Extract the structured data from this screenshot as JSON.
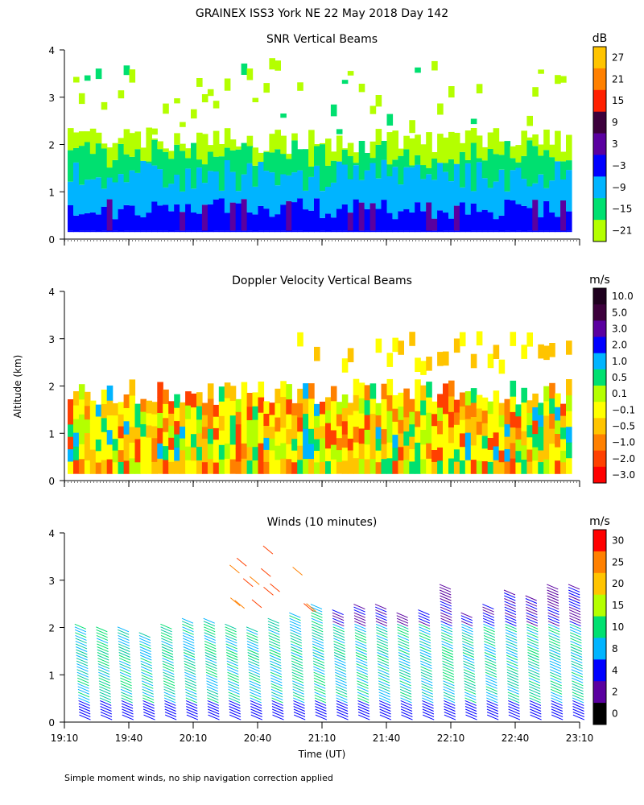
{
  "title": "GRAINEX ISS3 York NE  22 May 2018 Day 142",
  "ylabel": "Altitude (km)",
  "xlabel": "Time (UT)",
  "footnote": "Simple moment winds, no ship navigation correction applied",
  "chart_data": [
    {
      "type": "heatmap",
      "title": "SNR Vertical Beams",
      "colorbar_unit": "dB",
      "colorbar_labels": [
        "27",
        "21",
        "15",
        "9",
        "3",
        "−3",
        "−9",
        "−15",
        "−21"
      ],
      "colorbar_colors": [
        "#ffc400",
        "#ff8000",
        "#ff2000",
        "#3c003c",
        "#5a00a0",
        "#0000ff",
        "#00b4ff",
        "#00e070",
        "#b4ff00"
      ],
      "x_range": [
        19.1667,
        23.1667
      ],
      "ylim": [
        0,
        4
      ],
      "yticks": [
        0,
        1,
        2,
        3,
        4
      ],
      "data_top_km": 2.2,
      "sparse_top_km": 3.9,
      "levels": [
        {
          "top_km": 0.15,
          "value_db": -3
        },
        {
          "top_km": 0.7,
          "value_db": -3
        },
        {
          "top_km": 1.3,
          "value_db": -9
        },
        {
          "top_km": 1.8,
          "value_db": -15
        },
        {
          "top_km": 2.2,
          "value_db": -21
        }
      ]
    },
    {
      "type": "heatmap",
      "title": "Doppler Velocity Vertical Beams",
      "colorbar_unit": "m/s",
      "colorbar_labels": [
        "10.0",
        "5.0",
        "3.0",
        "2.0",
        "1.0",
        "0.5",
        "0.1",
        "−0.1",
        "−0.5",
        "−1.0",
        "−2.0",
        "−3.0"
      ],
      "colorbar_colors": [
        "#1e001e",
        "#3c003c",
        "#5a00a0",
        "#0000ff",
        "#00b4ff",
        "#00e070",
        "#b4ff00",
        "#ffff00",
        "#ffc400",
        "#ff8000",
        "#ff4000",
        "#ff0000"
      ],
      "x_range": [
        19.1667,
        23.1667
      ],
      "ylim": [
        0,
        4
      ],
      "yticks": [
        0,
        1,
        2,
        3,
        4
      ],
      "data_top_km": 2.1,
      "typical_range_ms": [
        -2.0,
        0.5
      ]
    },
    {
      "type": "scatter",
      "title": "Winds (10 minutes)",
      "colorbar_unit": "m/s",
      "colorbar_labels": [
        "30",
        "25",
        "20",
        "15",
        "10",
        "8",
        "4",
        "2",
        "0"
      ],
      "colorbar_colors": [
        "#ff0000",
        "#ff8000",
        "#ffc400",
        "#b4ff00",
        "#00e070",
        "#00b4ff",
        "#0000ff",
        "#5a00a0",
        "#000000"
      ],
      "x_range": [
        19.1667,
        23.1667
      ],
      "ylim": [
        0,
        4
      ],
      "yticks": [
        0,
        1,
        2,
        3,
        4
      ],
      "xtick_labels": [
        "19:10",
        "19:40",
        "20:10",
        "20:40",
        "21:10",
        "21:40",
        "22:10",
        "22:40",
        "23:10"
      ],
      "profile_interval_min": 10,
      "profile_tops_km": [
        2.0,
        1.9,
        1.9,
        1.8,
        2.0,
        2.1,
        2.1,
        2.0,
        1.9,
        2.1,
        2.2,
        2.4,
        2.3,
        2.4,
        2.4,
        2.2,
        2.3,
        2.8,
        2.2,
        2.4,
        2.7,
        2.6,
        2.8,
        2.8
      ]
    }
  ]
}
